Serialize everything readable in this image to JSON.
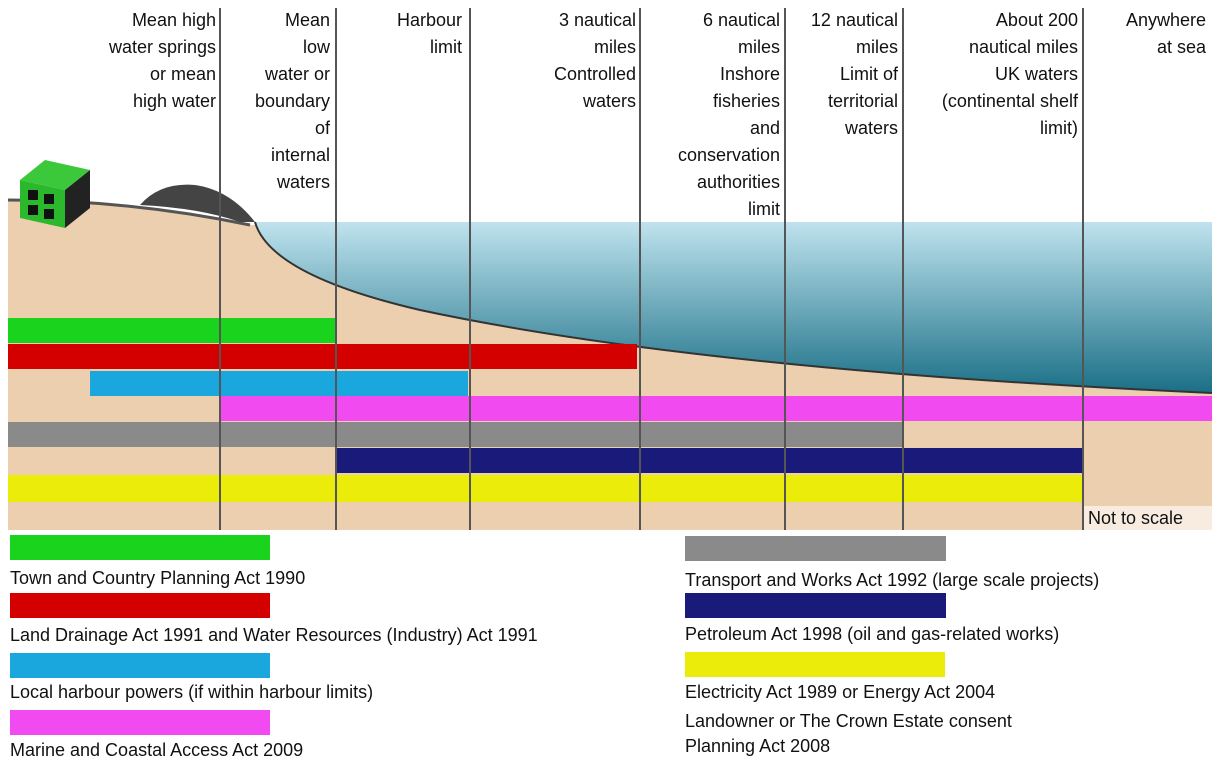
{
  "zones": [
    {
      "lines": [
        "Mean high",
        "water springs",
        "or mean",
        "high water"
      ]
    },
    {
      "lines": [
        "Mean",
        "low",
        "water or",
        "boundary",
        "of",
        "internal",
        "waters"
      ]
    },
    {
      "lines": [
        "Harbour",
        "limit"
      ]
    },
    {
      "lines": [
        "3 nautical",
        "miles",
        "Controlled",
        "waters"
      ]
    },
    {
      "lines": [
        "6 nautical",
        "miles",
        "Inshore",
        "fisheries",
        "and",
        "conservation",
        "authorities",
        "limit"
      ]
    },
    {
      "lines": [
        "12 nautical",
        "miles",
        "Limit of",
        "territorial",
        "waters"
      ]
    },
    {
      "lines": [
        "About 200",
        "nautical miles",
        "UK waters",
        "(continental shelf",
        "limit)"
      ]
    },
    {
      "lines": [
        "Anywhere",
        "at sea"
      ]
    }
  ],
  "note": "Not to scale",
  "legend": [
    "Town and Country Planning Act 1990",
    "Land Drainage Act 1991 and Water Resources (Industry) Act 1991",
    "Local harbour powers (if within harbour limits)",
    "Marine and Coastal Access Act 2009",
    "Transport and Works Act 1992 (large scale projects)",
    "Petroleum Act 1998 (oil and gas-related works)",
    "Electricity Act 1989 or Energy Act 2004",
    "Landowner or The Crown Estate consent",
    "Planning Act 2008"
  ]
}
